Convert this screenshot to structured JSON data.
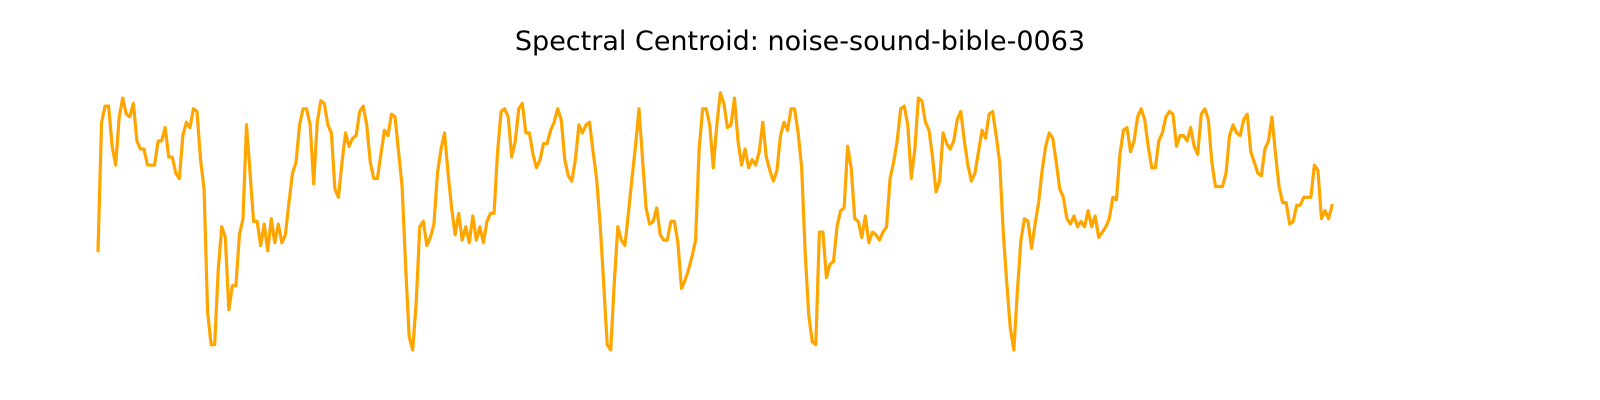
{
  "chart_data": {
    "type": "line",
    "title": "Spectral Centroid: noise-sound-bible-0063",
    "xlabel": "",
    "ylabel": "",
    "axes_visible": false,
    "grid": false,
    "legend": "none",
    "xlim": [
      0,
      388
    ],
    "ylim": [
      0,
      100
    ],
    "series": [
      {
        "color": "#ffa500",
        "values": [
          37,
          85,
          91,
          91,
          76,
          69,
          87,
          94,
          88,
          87,
          92,
          78,
          75,
          75,
          69,
          69,
          69,
          78,
          78,
          83,
          72,
          72,
          66,
          64,
          80,
          85,
          83,
          90,
          89,
          71,
          60,
          14,
          2,
          2,
          30,
          46,
          42,
          15,
          24,
          24,
          43,
          49,
          84,
          66,
          48,
          48,
          39,
          47,
          37,
          49,
          40,
          47,
          40,
          43,
          55,
          66,
          70,
          84,
          90,
          90,
          84,
          62,
          85,
          93,
          92,
          84,
          81,
          60,
          57,
          70,
          81,
          76,
          79,
          80,
          89,
          91,
          84,
          70,
          64,
          64,
          73,
          82,
          80,
          88,
          87,
          74,
          61,
          31,
          5,
          0,
          18,
          46,
          48,
          39,
          42,
          47,
          66,
          75,
          81,
          66,
          53,
          43,
          51,
          41,
          46,
          40,
          50,
          41,
          46,
          40,
          48,
          51,
          51,
          74,
          89,
          90,
          87,
          72,
          78,
          90,
          92,
          81,
          81,
          73,
          68,
          71,
          77,
          77,
          82,
          85,
          90,
          86,
          71,
          65,
          63,
          71,
          84,
          81,
          84,
          85,
          74,
          64,
          47,
          25,
          2,
          0,
          25,
          46,
          41,
          39,
          51,
          64,
          76,
          90,
          71,
          53,
          47,
          48,
          53,
          43,
          41,
          41,
          48,
          48,
          40,
          23,
          26,
          30,
          35,
          41,
          75,
          90,
          90,
          84,
          68,
          84,
          96,
          92,
          83,
          84,
          94,
          78,
          69,
          75,
          68,
          71,
          69,
          74,
          85,
          72,
          67,
          63,
          67,
          80,
          85,
          82,
          90,
          90,
          81,
          68,
          36,
          13,
          3,
          2,
          44,
          44,
          27,
          32,
          33,
          46,
          52,
          53,
          76,
          68,
          49,
          48,
          42,
          50,
          40,
          44,
          43,
          41,
          44,
          46,
          64,
          70,
          78,
          90,
          91,
          84,
          64,
          75,
          94,
          93,
          85,
          82,
          72,
          59,
          63,
          81,
          77,
          75,
          78,
          86,
          89,
          78,
          69,
          63,
          66,
          74,
          82,
          79,
          88,
          89,
          80,
          70,
          44,
          25,
          8,
          0,
          22,
          41,
          49,
          48,
          38,
          47,
          55,
          67,
          76,
          81,
          79,
          70,
          60,
          57,
          49,
          47,
          50,
          46,
          48,
          46,
          52,
          46,
          50,
          42,
          44,
          46,
          49,
          57,
          56,
          73,
          82,
          83,
          74,
          78,
          87,
          90,
          86,
          76,
          68,
          68,
          78,
          81,
          87,
          89,
          88,
          76,
          80,
          80,
          78,
          83,
          76,
          73,
          88,
          90,
          86,
          70,
          61,
          61,
          61,
          66,
          80,
          84,
          81,
          80,
          86,
          88,
          74,
          70,
          66,
          65,
          75,
          78,
          87,
          73,
          61,
          55,
          55,
          47,
          48,
          54,
          54,
          57,
          57,
          57,
          69,
          67,
          49,
          52,
          49,
          54
        ]
      }
    ]
  }
}
